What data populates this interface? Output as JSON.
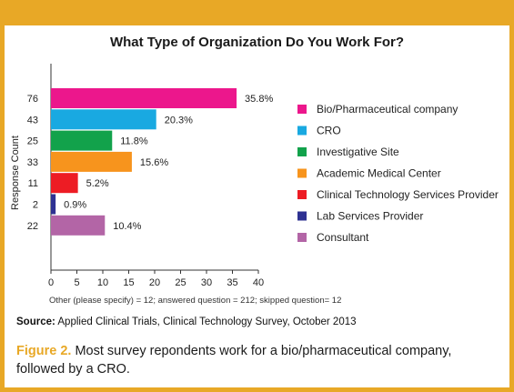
{
  "chart_data": {
    "type": "bar",
    "orientation": "horizontal",
    "title": "What Type of Organization Do You Work For?",
    "ylabel": "Response Count",
    "xlim": [
      0,
      40
    ],
    "x_ticks": [
      0,
      5,
      10,
      15,
      20,
      25,
      30,
      35,
      40
    ],
    "grid": false,
    "legend_position": "right",
    "series": [
      {
        "label": "Bio/Pharmaceutical company",
        "count": "76",
        "value": 35.8,
        "pct_label": "35.8%",
        "color": "#ec178c"
      },
      {
        "label": "CRO",
        "count": "43",
        "value": 20.3,
        "pct_label": "20.3%",
        "color": "#19a9e1"
      },
      {
        "label": "Investigative Site",
        "count": "25",
        "value": 11.8,
        "pct_label": "11.8%",
        "color": "#12a24b"
      },
      {
        "label": "Academic Medical Center",
        "count": "33",
        "value": 15.6,
        "pct_label": "15.6%",
        "color": "#f7941d"
      },
      {
        "label": "Clinical Technology Services Provider",
        "count": "11",
        "value": 5.2,
        "pct_label": "5.2%",
        "color": "#ed1c24"
      },
      {
        "label": "Lab Services Provider",
        "count": "2",
        "value": 0.9,
        "pct_label": "0.9%",
        "color": "#2e3192"
      },
      {
        "label": "Consultant",
        "count": "22",
        "value": 10.4,
        "pct_label": "10.4%",
        "color": "#b365a6"
      }
    ]
  },
  "footnote": "Other (please specify) = 12; answered question = 212; skipped question= 12",
  "source_label": "Source:",
  "source_text": "Applied Clinical Trials, Clinical Technology Survey, October 2013",
  "figure_label": "Figure 2.",
  "caption_text": "Most survey repondents work for a bio/pharmaceutical company, followed by a CRO.",
  "colors": {
    "frame": "#e8a826",
    "axis": "#333333"
  }
}
